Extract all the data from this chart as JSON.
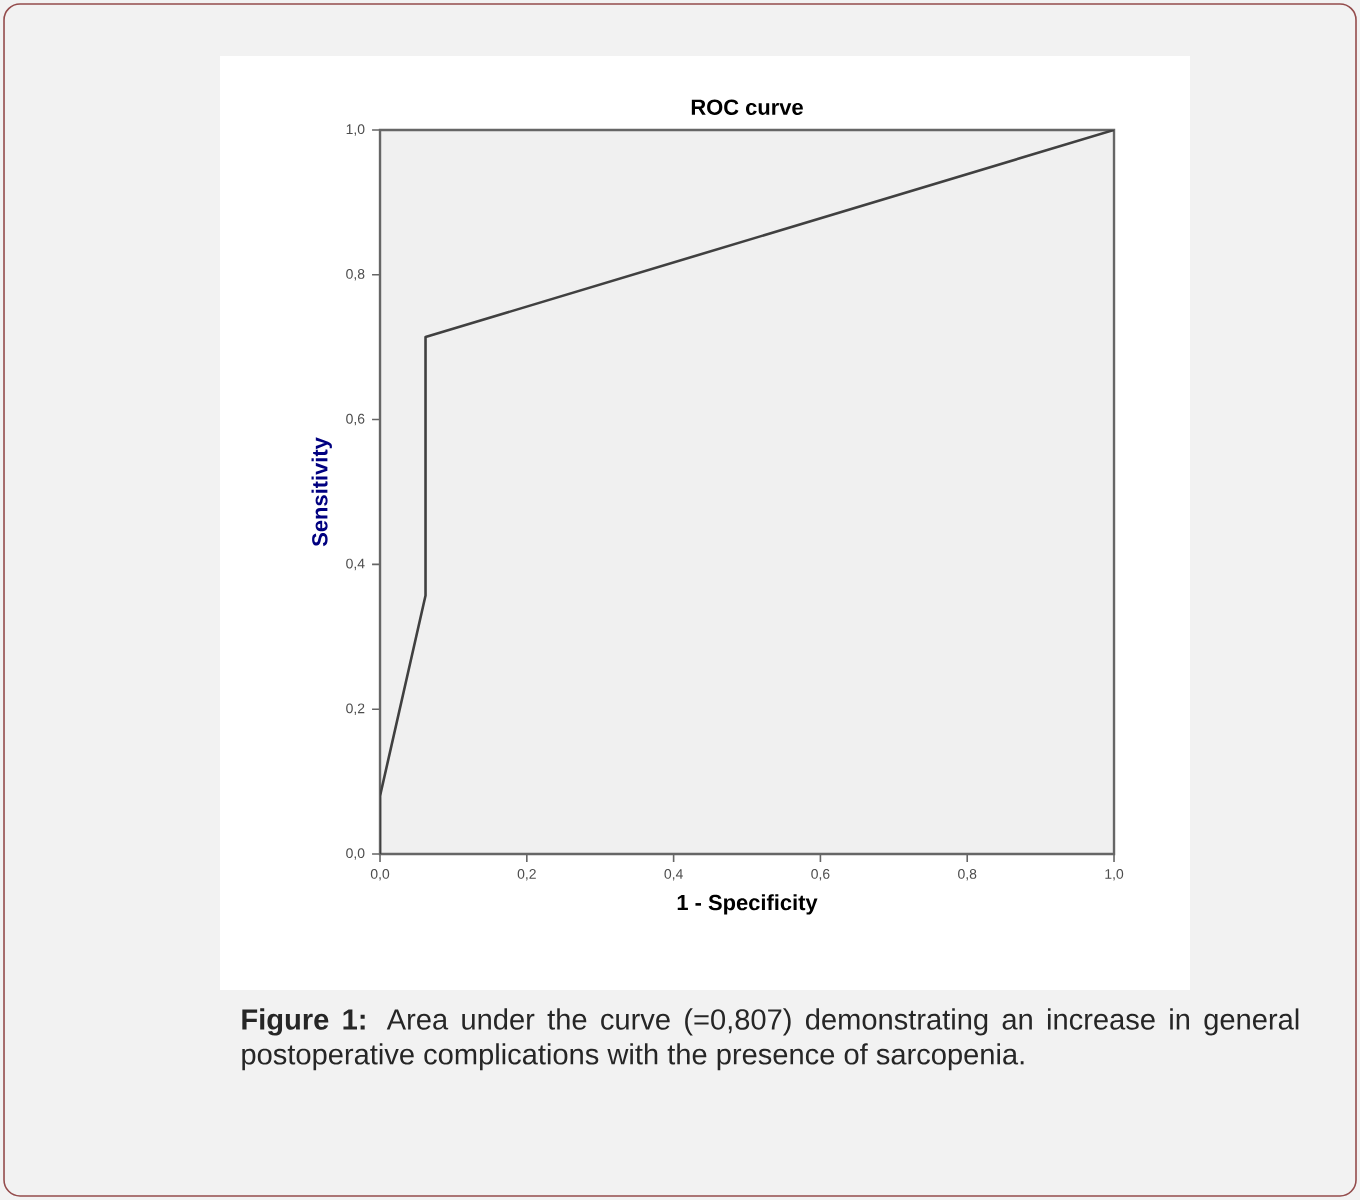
{
  "chart_data": {
    "type": "line",
    "title": "ROC curve",
    "xlabel": "1 - Specificity",
    "ylabel": "Sensitivity",
    "x": [
      0,
      0,
      0.062,
      0.062,
      1
    ],
    "series": [
      {
        "color": "#404040",
        "values": [
          0,
          0.08,
          0.357,
          0.714,
          1
        ]
      }
    ],
    "xlim": [
      0,
      1
    ],
    "ylim": [
      0,
      1
    ],
    "xticks": [
      {
        "value": 0,
        "label": "0,0"
      },
      {
        "value": 0.2,
        "label": "0,2"
      },
      {
        "value": 0.4,
        "label": "0,4"
      },
      {
        "value": 0.6,
        "label": "0,6"
      },
      {
        "value": 0.8,
        "label": "0,8"
      },
      {
        "value": 1,
        "label": "1,0"
      }
    ],
    "yticks": [
      {
        "value": 0,
        "label": "0,0"
      },
      {
        "value": 0.2,
        "label": "0,2"
      },
      {
        "value": 0.4,
        "label": "0,4"
      },
      {
        "value": 0.6,
        "label": "0,6"
      },
      {
        "value": 0.8,
        "label": "0,8"
      },
      {
        "value": 1,
        "label": "1,0"
      }
    ],
    "marker": "none",
    "line_style": "solid",
    "annotations": [
      "**Figure 1:** Area under the curve (=0,807) demonstrating an increase in general postoperative complications with the presence of sarcopenia."
    ]
  }
}
